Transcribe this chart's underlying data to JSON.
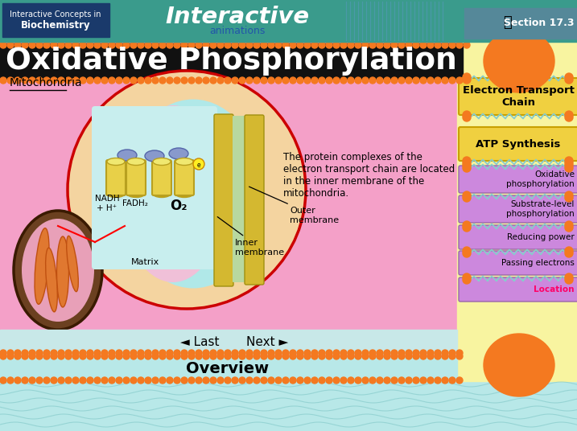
{
  "title": "Oxidative Phosphorylation",
  "header_bg": "#3a9b8c",
  "header_left_bg": "#1a3a6b",
  "header_left_line1": "Interactive Concepts in",
  "header_left_line2": "Biochemistry",
  "section_text": "Section 17.3",
  "orange_stripe_color": "#f47920",
  "main_bg": "#f4a0c8",
  "underline_label": "Mitochondria",
  "circle_bg": "#f4d4a0",
  "circle_outline": "#cc0000",
  "light_blue_membrane": "#b0e8e8",
  "protein_yellow": "#e8d048",
  "protein_outline": "#b8a020",
  "blue_oval_color": "#8899cc",
  "mito_outer_brown": "#6b4020",
  "mito_inner_pink": "#e8a0b8",
  "mito_fold_orange": "#e07830",
  "right_panel_bg": "#f8f4a0",
  "yellow_bar_color": "#f0d040",
  "purple_bar_color": "#cc88dd",
  "annotation_text": "The protein complexes of the\nelectron transport chain are located\nin the inner membrane of the\nmitochondria.",
  "outer_membrane_label": "Outer\nmembrane",
  "inner_membrane_label": "Inner\nmembrane",
  "matrix_label": "Matrix",
  "nadh_label": "NADH\n+ H⁺",
  "fadh2_label": "FADH₂",
  "o2_label": "O₂",
  "last_text": "Last",
  "next_text": "Next",
  "overview_text": "Overview",
  "bottom_bg": "#b8e8e8",
  "location_color": "#ff0066",
  "orange_ball_color": "#f47920"
}
